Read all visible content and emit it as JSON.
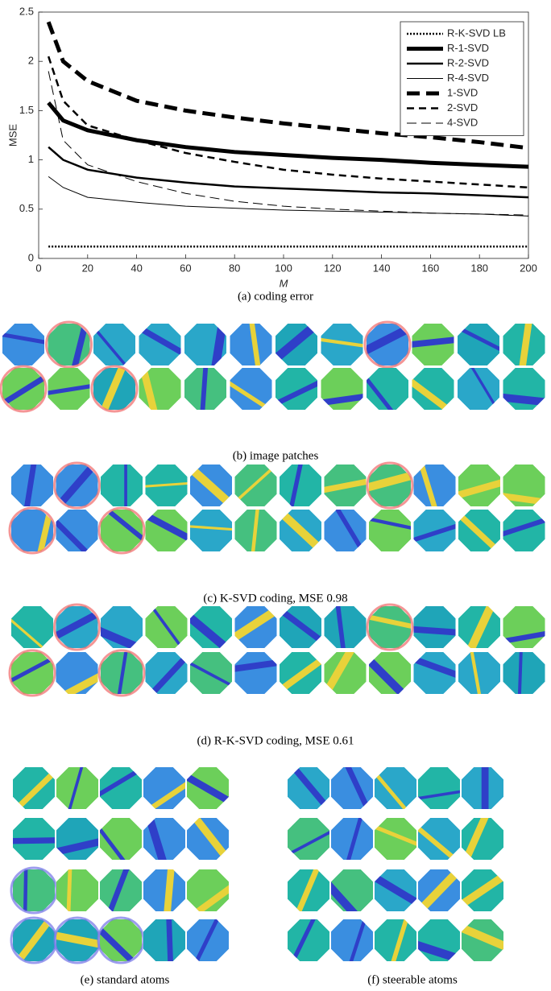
{
  "chart_data": {
    "type": "line",
    "x_label": "M",
    "y_label": "MSE",
    "x": [
      4,
      10,
      20,
      40,
      60,
      80,
      100,
      120,
      140,
      160,
      180,
      200
    ],
    "xlim": [
      0,
      200
    ],
    "xticks": [
      0,
      20,
      40,
      60,
      80,
      100,
      120,
      140,
      160,
      180,
      200
    ],
    "ylim": [
      0,
      2.5
    ],
    "yticks": [
      0,
      0.5,
      1,
      1.5,
      2,
      2.5
    ],
    "legend": "upper right",
    "series": [
      {
        "name": "R-K-SVD LB",
        "color": "#000000",
        "style": "dotted",
        "weight": "medium",
        "values": [
          0.12,
          0.12,
          0.12,
          0.12,
          0.12,
          0.12,
          0.12,
          0.12,
          0.12,
          0.12,
          0.12,
          0.12
        ]
      },
      {
        "name": "R-1-SVD",
        "color": "#000000",
        "style": "solid",
        "weight": "thick",
        "values": [
          1.58,
          1.4,
          1.3,
          1.2,
          1.13,
          1.08,
          1.05,
          1.02,
          1.0,
          0.97,
          0.95,
          0.93
        ]
      },
      {
        "name": "R-2-SVD",
        "color": "#000000",
        "style": "solid",
        "weight": "medium",
        "values": [
          1.13,
          1.0,
          0.9,
          0.82,
          0.77,
          0.73,
          0.71,
          0.69,
          0.67,
          0.66,
          0.64,
          0.62
        ]
      },
      {
        "name": "R-4-SVD",
        "color": "#000000",
        "style": "solid",
        "weight": "thin",
        "values": [
          0.83,
          0.72,
          0.62,
          0.57,
          0.53,
          0.51,
          0.49,
          0.48,
          0.47,
          0.46,
          0.45,
          0.43
        ]
      },
      {
        "name": "1-SVD",
        "color": "#000000",
        "style": "dashed",
        "weight": "thick",
        "values": [
          2.4,
          2.0,
          1.8,
          1.6,
          1.5,
          1.43,
          1.37,
          1.32,
          1.27,
          1.23,
          1.18,
          1.12
        ]
      },
      {
        "name": "2-SVD",
        "color": "#000000",
        "style": "dashed",
        "weight": "medium",
        "values": [
          2.05,
          1.6,
          1.35,
          1.2,
          1.07,
          0.98,
          0.9,
          0.85,
          0.81,
          0.78,
          0.75,
          0.72
        ]
      },
      {
        "name": "4-SVD",
        "color": "#000000",
        "style": "dashed",
        "weight": "thin",
        "values": [
          1.9,
          1.2,
          0.95,
          0.78,
          0.66,
          0.58,
          0.53,
          0.5,
          0.48,
          0.46,
          0.45,
          0.44
        ]
      }
    ]
  },
  "captions": {
    "a": "(a) coding error",
    "b": "(b) image patches",
    "c": "(c) K-SVD coding, MSE 0.98",
    "d": "(d) R-K-SVD coding, MSE 0.61",
    "e": "(e) standard atoms",
    "f": "(f) steerable atoms"
  }
}
